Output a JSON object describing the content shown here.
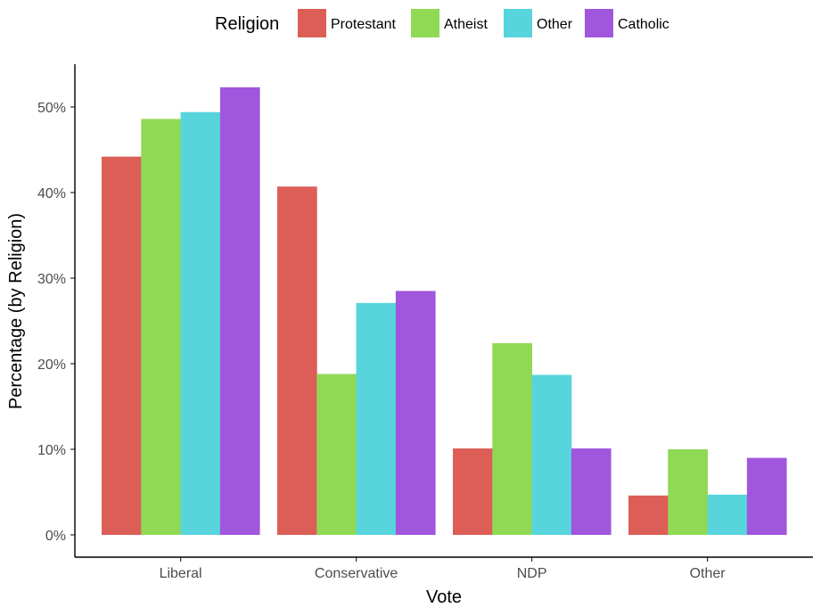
{
  "chart_data": {
    "type": "bar",
    "title": "",
    "xlabel": "Vote",
    "ylabel": "Percentage (by Religion)",
    "categories": [
      "Liberal",
      "Conservative",
      "NDP",
      "Other"
    ],
    "ylim": [
      0,
      0.55
    ],
    "yticks": [
      0,
      0.1,
      0.2,
      0.3,
      0.4,
      0.5
    ],
    "ytick_labels": [
      "0%",
      "10%",
      "20%",
      "30%",
      "40%",
      "50%"
    ],
    "grid": false,
    "legend": {
      "title": "Religion",
      "position": "top"
    },
    "series": [
      {
        "name": "Protestant",
        "color": "#dc5e57",
        "values": [
          0.442,
          0.407,
          0.101,
          0.046
        ]
      },
      {
        "name": "Atheist",
        "color": "#90d955",
        "values": [
          0.486,
          0.188,
          0.224,
          0.1
        ]
      },
      {
        "name": "Other",
        "color": "#58d4dc",
        "values": [
          0.494,
          0.271,
          0.187,
          0.047
        ]
      },
      {
        "name": "Catholic",
        "color": "#a056dd",
        "values": [
          0.523,
          0.285,
          0.101,
          0.09
        ]
      }
    ]
  }
}
